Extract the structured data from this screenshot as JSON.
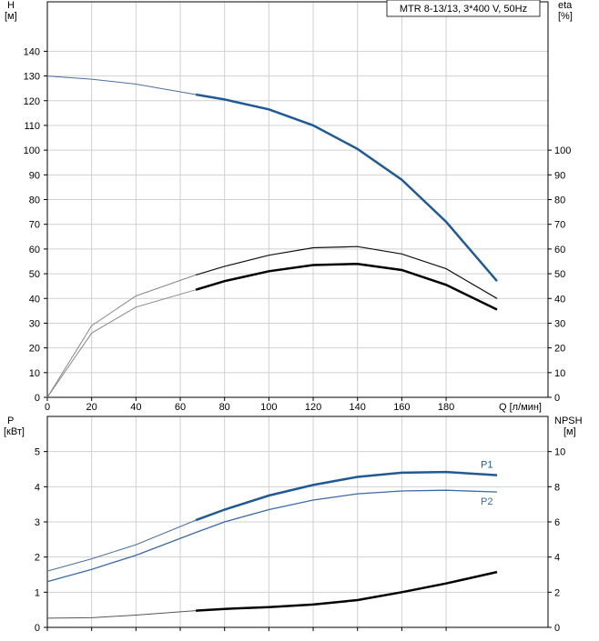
{
  "chart_data": [
    {
      "type": "line",
      "model": "MTR 8-13/13, 3*400 V, 50Hz",
      "y_label": "H",
      "y_unit": "[м]",
      "y2_label": "eta",
      "y2_unit": "[%]",
      "x_label": "Q [л/мин]",
      "xlim": [
        0,
        226
      ],
      "xticks": [
        0,
        20,
        40,
        60,
        80,
        100,
        120,
        140,
        160,
        180
      ],
      "ylim": [
        0,
        160
      ],
      "yticks": [
        0,
        10,
        20,
        30,
        40,
        50,
        60,
        70,
        80,
        90,
        100,
        110,
        120,
        130,
        140
      ],
      "y2lim": [
        0,
        160
      ],
      "y2ticks": [
        0,
        10,
        20,
        30,
        40,
        50,
        60,
        70,
        80,
        90,
        100
      ],
      "grid": true,
      "x": [
        0,
        20,
        40,
        67,
        80,
        100,
        120,
        140,
        160,
        180,
        203
      ],
      "series": [
        {
          "color": "#4a6fa0",
          "width": 1,
          "values": [
            130,
            128.7,
            126.7,
            122.5,
            null,
            null,
            null,
            null,
            null,
            null,
            null
          ]
        },
        {
          "color": "#1f5a96",
          "width": 2.5,
          "values": [
            null,
            null,
            null,
            122.5,
            120.5,
            116.5,
            110,
            100.5,
            88,
            71,
            47
          ]
        },
        {
          "color": "#888888",
          "width": 1,
          "axis": "y2",
          "values": [
            0,
            29,
            41,
            49.5,
            null,
            null,
            null,
            null,
            null,
            null,
            null
          ]
        },
        {
          "color": "#111111",
          "width": 1.2,
          "axis": "y2",
          "values": [
            null,
            null,
            null,
            49.5,
            53,
            57.5,
            60.5,
            61,
            58,
            52,
            40
          ]
        },
        {
          "color": "#888888",
          "width": 1,
          "axis": "y2",
          "values": [
            0,
            26,
            36.5,
            43.5,
            null,
            null,
            null,
            null,
            null,
            null,
            null
          ]
        },
        {
          "color": "#000000",
          "width": 2.5,
          "axis": "y2",
          "values": [
            null,
            null,
            null,
            43.5,
            47,
            51,
            53.5,
            54,
            51.5,
            45.5,
            35.5
          ]
        }
      ]
    },
    {
      "type": "line",
      "y_label": "P",
      "y_unit": "[кВт]",
      "y2_label": "NPSH",
      "y2_unit": "[м]",
      "xlim": [
        0,
        226
      ],
      "xticks": [
        0,
        20,
        40,
        60,
        80,
        100,
        120,
        140,
        160,
        180
      ],
      "xtick_labels": false,
      "ylim": [
        0,
        6
      ],
      "yticks": [
        0,
        1,
        2,
        3,
        4,
        5
      ],
      "y2lim": [
        0,
        12
      ],
      "y2ticks": [
        0,
        2,
        4,
        6,
        8,
        10
      ],
      "grid": true,
      "x": [
        0,
        20,
        40,
        67,
        80,
        100,
        120,
        140,
        160,
        180,
        203
      ],
      "series": [
        {
          "color": "#4a6fa0",
          "width": 1,
          "values": [
            1.6,
            1.95,
            2.35,
            3.05,
            null,
            null,
            null,
            null,
            null,
            null,
            null
          ]
        },
        {
          "name": "P1",
          "color": "#1f5a96",
          "width": 2.5,
          "values": [
            null,
            null,
            null,
            3.05,
            3.35,
            3.75,
            4.05,
            4.28,
            4.4,
            4.42,
            4.33
          ]
        },
        {
          "name": "P2",
          "color": "#3a6aa5",
          "width": 1.3,
          "values": [
            1.3,
            1.65,
            2.05,
            2.7,
            3.0,
            3.35,
            3.62,
            3.8,
            3.88,
            3.9,
            3.85
          ]
        },
        {
          "color": "#555555",
          "width": 1,
          "axis": "y2",
          "values": [
            0.52,
            0.55,
            0.7,
            0.95,
            null,
            null,
            null,
            null,
            null,
            null,
            null
          ]
        },
        {
          "color": "#000000",
          "width": 2.5,
          "axis": "y2",
          "values": [
            null,
            null,
            null,
            0.95,
            1.05,
            1.15,
            1.3,
            1.55,
            2.0,
            2.5,
            3.15
          ]
        }
      ]
    }
  ]
}
